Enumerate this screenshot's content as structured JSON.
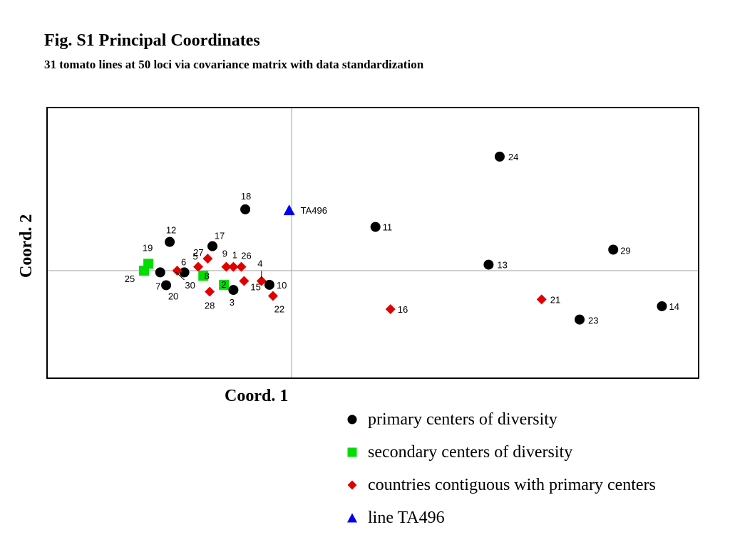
{
  "chart_data": {
    "type": "scatter",
    "title": "Fig. S1 Principal Coordinates",
    "subtitle": "31 tomato lines at 50 loci via covariance matrix with data standardization",
    "xlabel": "Coord. 1",
    "ylabel": "Coord. 2",
    "grid": false,
    "origin_lines": true,
    "colors": {
      "primary": "#000000",
      "secondary": "#00dd00",
      "contiguous": "#e00000",
      "line": "#0000ee"
    },
    "points": [
      {
        "label": "1",
        "group": "contiguous",
        "x": -1.47,
        "y": 0.09
      },
      {
        "label": "2",
        "group": "secondary",
        "x": -1.71,
        "y": -0.33
      },
      {
        "label": "3",
        "group": "primary",
        "x": -1.47,
        "y": -0.45
      },
      {
        "label": "4",
        "group": "contiguous",
        "x": -0.76,
        "y": -0.24
      },
      {
        "label": "5",
        "group": "contiguous",
        "x": -2.36,
        "y": 0.09
      },
      {
        "label": "6",
        "group": "primary",
        "x": -2.71,
        "y": -0.04
      },
      {
        "label": "7",
        "group": "primary",
        "x": -3.32,
        "y": -0.04
      },
      {
        "label": "8",
        "group": "secondary",
        "x": -2.23,
        "y": -0.12
      },
      {
        "label": "9",
        "group": "contiguous",
        "x": -1.65,
        "y": 0.09
      },
      {
        "label": "10",
        "group": "primary",
        "x": -0.56,
        "y": -0.33
      },
      {
        "label": "11",
        "group": "primary",
        "x": 2.12,
        "y": 1.02
      },
      {
        "label": "12",
        "group": "primary",
        "x": -3.08,
        "y": 0.67
      },
      {
        "label": "13",
        "group": "primary",
        "x": 4.98,
        "y": 0.14
      },
      {
        "label": "14",
        "group": "primary",
        "x": 9.36,
        "y": -0.83
      },
      {
        "label": "15",
        "group": "contiguous",
        "x": -1.2,
        "y": -0.24
      },
      {
        "label": "16",
        "group": "contiguous",
        "x": 2.5,
        "y": -0.9
      },
      {
        "label": "17",
        "group": "primary",
        "x": -2.0,
        "y": 0.57
      },
      {
        "label": "18",
        "group": "primary",
        "x": -1.17,
        "y": 1.43
      },
      {
        "label": "19",
        "group": "secondary",
        "x": -3.62,
        "y": 0.16
      },
      {
        "label": "20",
        "group": "primary",
        "x": -3.17,
        "y": -0.34
      },
      {
        "label": "21",
        "group": "contiguous",
        "x": 6.32,
        "y": -0.67
      },
      {
        "label": "22",
        "group": "contiguous",
        "x": -0.47,
        "y": -0.59
      },
      {
        "label": "23",
        "group": "primary",
        "x": 7.28,
        "y": -1.14
      },
      {
        "label": "24",
        "group": "primary",
        "x": 5.26,
        "y": 2.66
      },
      {
        "label": "25",
        "group": "secondary",
        "x": -3.73,
        "y": 0.0
      },
      {
        "label": "26",
        "group": "contiguous",
        "x": -1.27,
        "y": 0.09
      },
      {
        "label": "27",
        "group": "contiguous",
        "x": -2.12,
        "y": 0.28
      },
      {
        "label": "28",
        "group": "contiguous",
        "x": -2.07,
        "y": -0.49
      },
      {
        "label": "29",
        "group": "primary",
        "x": 8.13,
        "y": 0.49
      },
      {
        "label": "30",
        "group": "contiguous",
        "x": -2.89,
        "y": 0.0
      },
      {
        "label": "TA496",
        "group": "line",
        "x": -0.06,
        "y": 1.41
      }
    ],
    "legend": [
      {
        "group": "primary",
        "label": "primary centers of diversity"
      },
      {
        "group": "secondary",
        "label": "secondary centers of diversity"
      },
      {
        "group": "contiguous",
        "label": "countries contiguous with primary centers"
      },
      {
        "group": "line",
        "label": "line TA496"
      }
    ],
    "legend_placement": "bottom-right"
  }
}
